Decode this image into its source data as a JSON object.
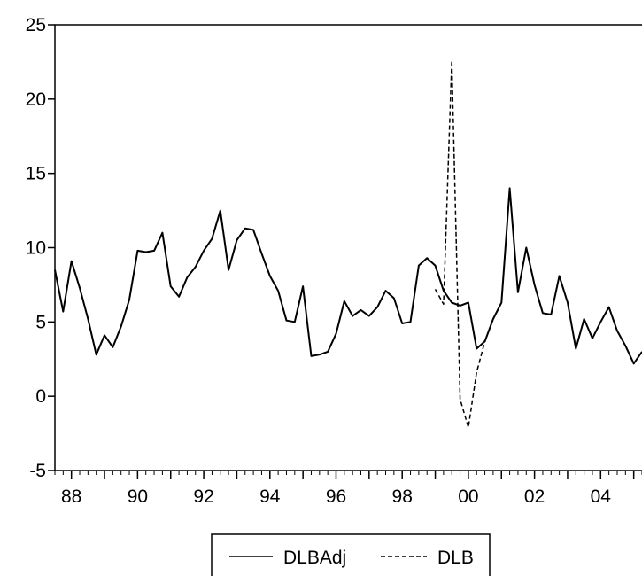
{
  "chart_data": {
    "type": "line",
    "title": "",
    "xlabel": "",
    "ylabel": "",
    "ylim": [
      -5,
      25
    ],
    "y_ticks": [
      -5,
      0,
      5,
      10,
      15,
      20,
      25
    ],
    "x_tick_labels": [
      "88",
      "90",
      "92",
      "94",
      "96",
      "98",
      "00",
      "02",
      "04"
    ],
    "x_tick_years": [
      1988,
      1990,
      1992,
      1994,
      1996,
      1998,
      2000,
      2002,
      2004
    ],
    "xlim": [
      1987.5,
      2005.25
    ],
    "grid": false,
    "legend_position": "bottom",
    "series": [
      {
        "name": "DLBAdj",
        "style": "solid",
        "color": "#000000",
        "x": [
          1987.5,
          1987.75,
          1988,
          1988.25,
          1988.5,
          1988.75,
          1989,
          1989.25,
          1989.5,
          1989.75,
          1990,
          1990.25,
          1990.5,
          1990.75,
          1991,
          1991.25,
          1991.5,
          1991.75,
          1992,
          1992.25,
          1992.5,
          1992.75,
          1993,
          1993.25,
          1993.5,
          1993.75,
          1994,
          1994.25,
          1994.5,
          1994.75,
          1995,
          1995.25,
          1995.5,
          1995.75,
          1996,
          1996.25,
          1996.5,
          1996.75,
          1997,
          1997.25,
          1997.5,
          1997.75,
          1998,
          1998.25,
          1998.5,
          1998.75,
          1999,
          1999.25,
          1999.5,
          1999.75,
          2000,
          2000.25,
          2000.5,
          2000.75,
          2001,
          2001.25,
          2001.5,
          2001.75,
          2002,
          2002.25,
          2002.5,
          2002.75,
          2003,
          2003.25,
          2003.5,
          2003.75,
          2004,
          2004.25,
          2004.5,
          2004.75,
          2005,
          2005.25
        ],
        "values": [
          8.5,
          5.7,
          9.1,
          7.3,
          5.2,
          2.8,
          4.1,
          3.3,
          4.7,
          6.5,
          9.8,
          9.7,
          9.8,
          11.0,
          7.4,
          6.7,
          8.0,
          8.7,
          9.8,
          10.6,
          12.5,
          8.5,
          10.5,
          11.3,
          11.2,
          9.6,
          8.1,
          7.1,
          5.1,
          5.0,
          7.4,
          2.7,
          2.8,
          3.0,
          4.2,
          6.4,
          5.4,
          5.8,
          5.4,
          6.0,
          7.1,
          6.6,
          4.9,
          5.0,
          8.8,
          9.3,
          8.8,
          7.1,
          6.3,
          6.1,
          6.3,
          3.2,
          3.7,
          5.2,
          6.3,
          14.0,
          7.0,
          10.0,
          7.5,
          5.6,
          5.5,
          8.1,
          6.3,
          3.2,
          5.2,
          3.9,
          5.0,
          6.0,
          4.4,
          3.4,
          2.2,
          3.0
        ]
      },
      {
        "name": "DLB",
        "style": "dashed",
        "color": "#000000",
        "x": [
          1999,
          1999.25,
          1999.5,
          1999.75,
          2000,
          2000.25,
          2000.5
        ],
        "values": [
          7.2,
          6.2,
          22.6,
          -0.2,
          -2.1,
          1.6,
          3.7
        ]
      }
    ]
  }
}
